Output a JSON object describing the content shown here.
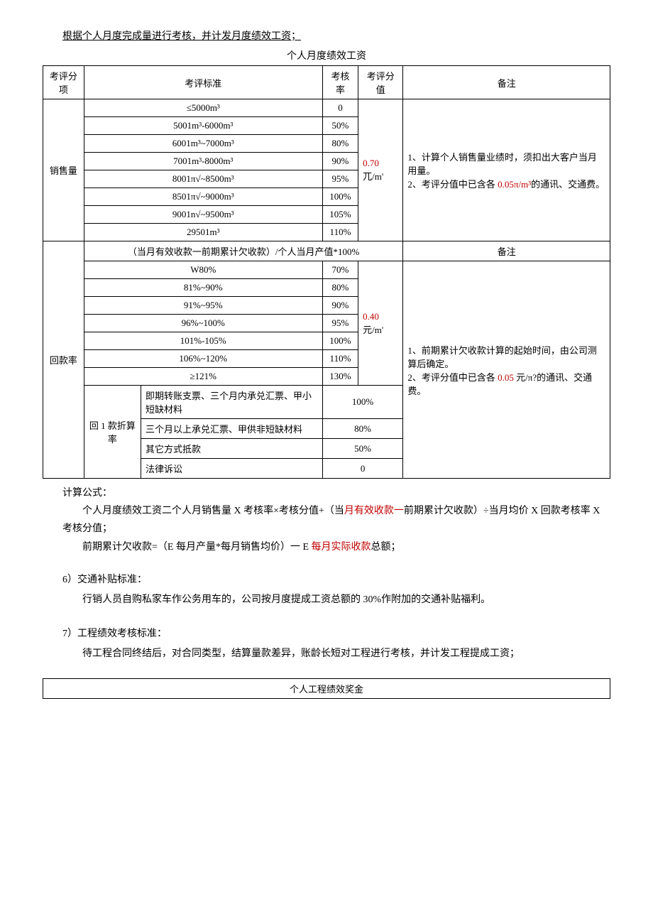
{
  "header_line": "根据个人月度完成量进行考核，并计发月度绩效工资；",
  "table1_title": "个人月度绩效工资",
  "table1": {
    "headers": [
      "考评分项",
      "考评标准",
      "考核率",
      "考评分值",
      "备注"
    ],
    "sales": {
      "label": "销售量",
      "rows": [
        {
          "std": "≤5000m³",
          "rate": "0"
        },
        {
          "std": "5001m³-6000m³",
          "rate": "50%"
        },
        {
          "std": "6001m³~7000m³",
          "rate": "80%"
        },
        {
          "std": "7001m³-8000m³",
          "rate": "90%"
        },
        {
          "std": "8001π√~8500m³",
          "rate": "95%"
        },
        {
          "std": "8501π√~9000m³",
          "rate": "100%"
        },
        {
          "std": "9001n√~9500m³",
          "rate": "105%"
        },
        {
          "std": "29501m³",
          "rate": "110%"
        }
      ],
      "value_amount": "0.70",
      "value_unit": " 兀/m'",
      "remark_1": "1、计算个人销售量业绩时，须扣出大客户当月用量。",
      "remark_2a": "2、考评分值中已含各 ",
      "remark_2red": "0.05π/m³",
      "remark_2b": "的通讯、交通费。"
    },
    "payback": {
      "label": "回款率",
      "formula_row": "（当月有效收款一前期累计欠收款）/个人当月产值*100%",
      "formula_remark": "备注",
      "rows": [
        {
          "std": "W80%",
          "rate": "70%"
        },
        {
          "std": "81%~90%",
          "rate": "80%"
        },
        {
          "std": "91%~95%",
          "rate": "90%"
        },
        {
          "std": "96%~100%",
          "rate": "95%"
        },
        {
          "std": "101%-105%",
          "rate": "100%"
        },
        {
          "std": "106%~120%",
          "rate": "110%"
        },
        {
          "std": "≥121%",
          "rate": "130%"
        }
      ],
      "value_amount": "0.40",
      "value_unit": " 元/m'",
      "discount_label": "回 1 款折算率",
      "discount_rows": [
        {
          "std": "即期转账支票、三个月内承兑汇票、甲小短缺材料",
          "rate": "100%"
        },
        {
          "std": "三个月以上承兑汇票、甲供非短缺材料",
          "rate": "80%"
        },
        {
          "std": "其它方式抵款",
          "rate": "50%"
        },
        {
          "std": "法律诉讼",
          "rate": "0"
        }
      ],
      "remark_1": "1、前期累计欠收款计算的起始时间，由公司测算后确定。",
      "remark_2a": "2、考评分值中已含各 ",
      "remark_2red": "0.05",
      "remark_2b": " 元/π?的通讯、交通费。"
    }
  },
  "formula": {
    "title": "计算公式：",
    "line1a": "个人月度绩效工资二个人月销售量 X 考核率×考核分值+（当",
    "line1red": "月有效收款一",
    "line1b": "前期累计欠收款）÷当月均价 X 回款考核率 X 考核分值；",
    "line2a": "前期累计欠收款=（E 每月产量*每月销售均价）一 E ",
    "line2red": "每月实际收款",
    "line2b": "总额；"
  },
  "section6": {
    "title": "6）交通补贴标准：",
    "body": "行销人员自购私家车作公务用车的，公司按月度提成工资总额的 30%作附加的交通补贴福利。"
  },
  "section7": {
    "title": "7）工程绩效考核标准：",
    "body": "待工程合同终结后，对合同类型，结算量款差异，账龄长短对工程进行考核，并计发工程提成工资；"
  },
  "table2_title": "个人工程绩效奖金"
}
